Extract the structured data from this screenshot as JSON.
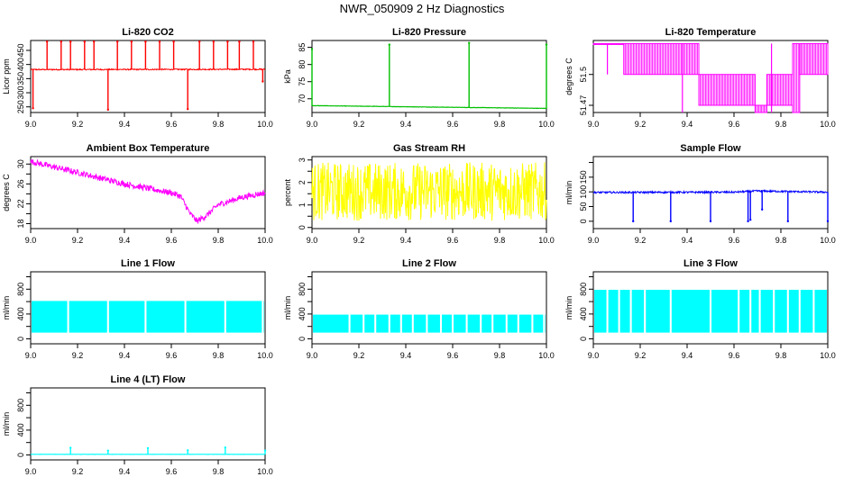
{
  "figure": {
    "title": "NWR_050909  2 Hz Diagnostics"
  },
  "chart_data": [
    {
      "id": "co2",
      "type": "line",
      "title": "Li-820 CO2",
      "ylabel": "Licor ppm",
      "color": "#ff0000",
      "xlim": [
        9.0,
        10.0
      ],
      "ylim": [
        230,
        485
      ],
      "yticks": [
        250,
        300,
        350,
        400,
        450
      ],
      "xticks": [
        9.0,
        9.2,
        9.4,
        9.6,
        9.8,
        10.0
      ],
      "series": [
        {
          "name": "CO2",
          "style": "band",
          "base": [
            [
              9.0,
              382
            ],
            [
              10.0,
              383
            ]
          ],
          "noise": 2,
          "spikes": [
            [
              9.01,
              245
            ],
            [
              9.07,
              481
            ],
            [
              9.13,
              481
            ],
            [
              9.17,
              481
            ],
            [
              9.23,
              481
            ],
            [
              9.27,
              481
            ],
            [
              9.33,
              240
            ],
            [
              9.37,
              481
            ],
            [
              9.43,
              481
            ],
            [
              9.49,
              481
            ],
            [
              9.55,
              481
            ],
            [
              9.61,
              481
            ],
            [
              9.67,
              242
            ],
            [
              9.72,
              481
            ],
            [
              9.78,
              481
            ],
            [
              9.84,
              481
            ],
            [
              9.89,
              481
            ],
            [
              9.95,
              481
            ],
            [
              9.99,
              340
            ]
          ]
        }
      ]
    },
    {
      "id": "pressure",
      "type": "line",
      "title": "Li-820 Pressure",
      "ylabel": "kPa",
      "color": "#00c000",
      "xlim": [
        9.0,
        10.0
      ],
      "ylim": [
        66,
        87
      ],
      "yticks": [
        70,
        75,
        80,
        85
      ],
      "xticks": [
        9.0,
        9.2,
        9.4,
        9.6,
        9.8,
        10.0
      ],
      "series": [
        {
          "name": "Pressure",
          "style": "line",
          "base": [
            [
              9.0,
              68.0
            ],
            [
              10.0,
              67.2
            ]
          ],
          "noise": 0.05,
          "spikes": [
            [
              9.0,
              84.5
            ],
            [
              9.33,
              85.8
            ],
            [
              9.67,
              86.3
            ],
            [
              10.0,
              85.8
            ]
          ]
        }
      ]
    },
    {
      "id": "li820temp",
      "type": "line",
      "title": "Li-820 Temperature",
      "ylabel": "degrees C",
      "color": "#ff00ff",
      "xlim": [
        9.0,
        10.0
      ],
      "ylim": [
        51.463,
        51.533
      ],
      "yticks": [
        51.47,
        51.5
      ],
      "yticks_hidden_label": [
        51.47,
        51.49,
        51.5
      ],
      "xticks": [
        9.0,
        9.2,
        9.4,
        9.6,
        9.8,
        10.0
      ],
      "series": [
        {
          "name": "Temperature",
          "style": "steps",
          "segments": [
            [
              9.0,
              9.13,
              51.53,
              51.53
            ],
            [
              9.13,
              9.45,
              51.5,
              51.53
            ],
            [
              9.45,
              9.69,
              51.47,
              51.5
            ],
            [
              9.69,
              9.74,
              51.463,
              51.47
            ],
            [
              9.74,
              9.85,
              51.47,
              51.5
            ],
            [
              9.85,
              9.88,
              51.463,
              51.53
            ],
            [
              9.88,
              10.0,
              51.5,
              51.53
            ]
          ],
          "spikes": [
            [
              9.06,
              51.5
            ],
            [
              9.38,
              51.463
            ],
            [
              9.76,
              51.463
            ]
          ]
        }
      ]
    },
    {
      "id": "boxtemp",
      "type": "line",
      "title": "Ambient Box Temperature",
      "ylabel": "degrees C",
      "color": "#ff00ff",
      "xlim": [
        9.0,
        10.0
      ],
      "ylim": [
        17,
        31.5
      ],
      "yticks": [
        18,
        20,
        22,
        24,
        26,
        28,
        30
      ],
      "ytick_labels_shown": [
        18,
        22,
        26,
        30
      ],
      "xticks": [
        9.0,
        9.2,
        9.4,
        9.6,
        9.8,
        10.0
      ],
      "series": [
        {
          "name": "Box Temperature",
          "style": "band",
          "base": [
            [
              9.0,
              30.5
            ],
            [
              9.2,
              28.3
            ],
            [
              9.4,
              26.0
            ],
            [
              9.6,
              24.2
            ],
            [
              9.64,
              23.5
            ],
            [
              9.68,
              20.0
            ],
            [
              9.71,
              18.5
            ],
            [
              9.75,
              19.6
            ],
            [
              9.8,
              21.8
            ],
            [
              9.9,
              23.3
            ],
            [
              10.0,
              24.2
            ]
          ],
          "noise": 0.6,
          "spikes": []
        }
      ]
    },
    {
      "id": "rh",
      "type": "line",
      "title": "Gas Stream RH",
      "ylabel": "percent",
      "color": "#ffff00",
      "xlim": [
        9.0,
        10.0
      ],
      "ylim": [
        -0.05,
        3.15
      ],
      "yticks": [
        0.0,
        0.5,
        1.0,
        1.5,
        2.0,
        2.5,
        3.0
      ],
      "ytick_labels_shown": [
        0.0,
        1.0,
        2.0,
        3.0
      ],
      "xticks": [
        9.0,
        9.2,
        9.4,
        9.6,
        9.8,
        10.0
      ],
      "series": [
        {
          "name": "RH",
          "style": "band",
          "base": [
            [
              9.0,
              1.6
            ],
            [
              10.0,
              1.6
            ]
          ],
          "noise": 1.3,
          "spikes": []
        }
      ]
    },
    {
      "id": "sampleflow",
      "type": "line",
      "title": "Sample Flow",
      "ylabel": "ml/min",
      "color": "#0000ff",
      "xlim": [
        9.0,
        10.0
      ],
      "ylim": [
        -25,
        220
      ],
      "yticks": [
        0,
        50,
        100,
        150,
        200
      ],
      "ytick_labels_shown": [
        0,
        50,
        100,
        150
      ],
      "xticks": [
        9.0,
        9.2,
        9.4,
        9.6,
        9.8,
        10.0
      ],
      "series": [
        {
          "name": "Sample Flow",
          "style": "band",
          "base": [
            [
              9.0,
              98
            ],
            [
              9.6,
              99
            ],
            [
              9.7,
              103
            ],
            [
              10.0,
              99
            ]
          ],
          "noise": 3,
          "spikes": [
            [
              9.17,
              0
            ],
            [
              9.33,
              0
            ],
            [
              9.5,
              0
            ],
            [
              9.66,
              0
            ],
            [
              9.67,
              5
            ],
            [
              9.72,
              40
            ],
            [
              9.83,
              0
            ],
            [
              10.0,
              0
            ]
          ]
        }
      ]
    },
    {
      "id": "line1",
      "type": "line",
      "title": "Line 1 Flow",
      "ylabel": "ml/min",
      "color": "#00ffff",
      "xlim": [
        9.0,
        10.0
      ],
      "ylim": [
        -80,
        1080
      ],
      "yticks": [
        0,
        200,
        400,
        600,
        800,
        1000
      ],
      "ytick_labels_shown": [
        0,
        400,
        800
      ],
      "xticks": [
        9.0,
        9.2,
        9.4,
        9.6,
        9.8,
        10.0
      ],
      "series": [
        {
          "name": "Line 1",
          "style": "fill",
          "low": 100,
          "high": 610,
          "gaps": [
            9.16,
            9.33,
            9.49,
            9.66,
            9.83,
            9.99
          ]
        }
      ]
    },
    {
      "id": "line2",
      "type": "line",
      "title": "Line 2 Flow",
      "ylabel": "ml/min",
      "color": "#00ffff",
      "xlim": [
        9.0,
        10.0
      ],
      "ylim": [
        -80,
        1080
      ],
      "yticks": [
        0,
        200,
        400,
        600,
        800,
        1000
      ],
      "ytick_labels_shown": [
        0,
        400,
        800
      ],
      "xticks": [
        9.0,
        9.2,
        9.4,
        9.6,
        9.8,
        10.0
      ],
      "series": [
        {
          "name": "Line 2",
          "style": "fill",
          "low": 100,
          "high": 390,
          "gaps": [
            9.16,
            9.22,
            9.27,
            9.33,
            9.38,
            9.43,
            9.49,
            9.55,
            9.6,
            9.66,
            9.72,
            9.77,
            9.83,
            9.88,
            9.94,
            9.99
          ]
        }
      ]
    },
    {
      "id": "line3",
      "type": "line",
      "title": "Line 3 Flow",
      "ylabel": "ml/min",
      "color": "#00ffff",
      "xlim": [
        9.0,
        10.0
      ],
      "ylim": [
        -80,
        1080
      ],
      "yticks": [
        0,
        200,
        400,
        600,
        800,
        1000
      ],
      "ytick_labels_shown": [
        0,
        400,
        800
      ],
      "xticks": [
        9.0,
        9.2,
        9.4,
        9.6,
        9.8,
        10.0
      ],
      "series": [
        {
          "name": "Line 3",
          "style": "fill",
          "low": 100,
          "high": 790,
          "gaps": [
            9.06,
            9.11,
            9.16,
            9.22,
            9.33,
            9.5,
            9.62,
            9.67,
            9.71,
            9.77,
            9.83,
            9.88,
            9.94
          ]
        }
      ]
    },
    {
      "id": "line4",
      "type": "line",
      "title": "Line 4 (LT) Flow",
      "ylabel": "ml/min",
      "color": "#00ffff",
      "xlim": [
        9.0,
        10.0
      ],
      "ylim": [
        -80,
        1080
      ],
      "yticks": [
        0,
        200,
        400,
        600,
        800,
        1000
      ],
      "ytick_labels_shown": [
        0,
        400,
        800
      ],
      "xticks": [
        9.0,
        9.2,
        9.4,
        9.6,
        9.8,
        10.0
      ],
      "series": [
        {
          "name": "Line 4",
          "style": "line",
          "base": [
            [
              9.0,
              10
            ],
            [
              10.0,
              10
            ]
          ],
          "noise": 2,
          "spikes": [
            [
              9.17,
              115
            ],
            [
              9.33,
              70
            ],
            [
              9.5,
              110
            ],
            [
              9.67,
              75
            ],
            [
              9.83,
              120
            ],
            [
              10.0,
              70
            ]
          ]
        }
      ]
    }
  ]
}
